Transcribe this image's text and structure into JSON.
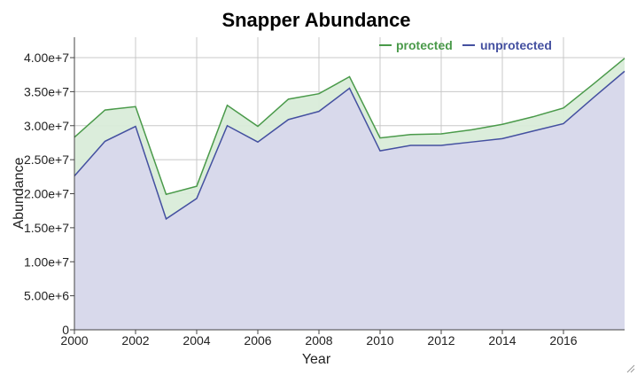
{
  "chart_data": {
    "type": "area",
    "title": "Snapper Abundance",
    "xlabel": "Year",
    "ylabel": "Abundance",
    "xlim": [
      2000,
      2018
    ],
    "ylim": [
      0,
      43000000
    ],
    "grid": true,
    "legend_position": "top-right",
    "x_ticks": [
      2000,
      2002,
      2004,
      2006,
      2008,
      2010,
      2012,
      2014,
      2016
    ],
    "x_tick_labels": [
      "2000",
      "2002",
      "2004",
      "2006",
      "2008",
      "2010",
      "2012",
      "2014",
      "2016"
    ],
    "y_ticks": [
      0,
      5000000,
      10000000,
      15000000,
      20000000,
      25000000,
      30000000,
      35000000,
      40000000
    ],
    "y_tick_labels": [
      "0",
      "5.00e+6",
      "1.00e+7",
      "1.50e+7",
      "2.00e+7",
      "2.50e+7",
      "3.00e+7",
      "3.50e+7",
      "4.00e+7"
    ],
    "x": [
      2000,
      2001,
      2002,
      2003,
      2004,
      2005,
      2006,
      2007,
      2008,
      2009,
      2010,
      2011,
      2012,
      2013,
      2014,
      2015,
      2016,
      2017,
      2018
    ],
    "series": [
      {
        "name": "protected",
        "color": "#4a9a4a",
        "fill": "#d9ecd9",
        "values": [
          28300000,
          32300000,
          32800000,
          19900000,
          21100000,
          33000000,
          29900000,
          33900000,
          34700000,
          37200000,
          28200000,
          28700000,
          28800000,
          29400000,
          30200000,
          31300000,
          32600000,
          36200000,
          39900000
        ]
      },
      {
        "name": "unprotected",
        "color": "#4450a0",
        "fill": "#d8d8ec",
        "values": [
          22600000,
          27700000,
          29900000,
          16300000,
          19300000,
          30000000,
          27600000,
          30900000,
          32100000,
          35500000,
          26300000,
          27100000,
          27100000,
          27600000,
          28100000,
          29200000,
          30300000,
          34200000,
          38000000
        ]
      }
    ]
  }
}
